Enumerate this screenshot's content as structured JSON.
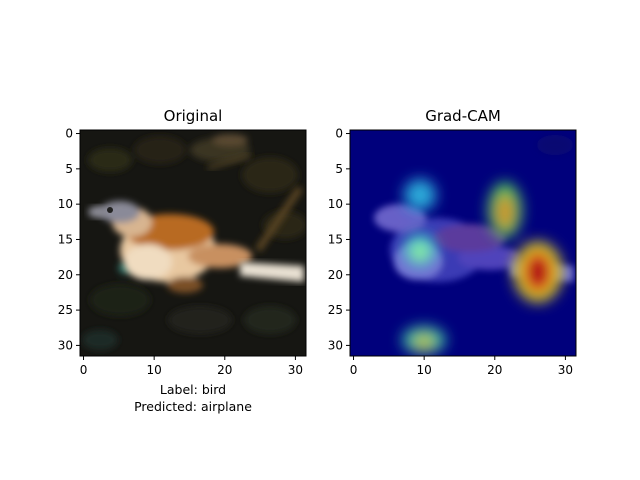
{
  "figure": {
    "panels": [
      {
        "title": "Original",
        "image": "cifar-10 bird photo: small brown and white bird perched on a branch, dark background",
        "xticks": [
          "0",
          "10",
          "20",
          "30"
        ],
        "yticks": [
          "0",
          "5",
          "10",
          "15",
          "20",
          "25",
          "30"
        ],
        "caption": [
          "Label: bird",
          "Predicted: airplane"
        ]
      },
      {
        "title": "Grad-CAM",
        "image": "jet-colormap Grad-CAM heatmap overlay on the bird photo",
        "xticks": [
          "0",
          "10",
          "20",
          "30"
        ],
        "yticks": [
          "0",
          "5",
          "10",
          "15",
          "20",
          "25",
          "30"
        ]
      }
    ],
    "grid_size": 32,
    "colormap": "jet",
    "heat_regions": [
      {
        "row": 9,
        "col": 9,
        "strength": 0.45
      },
      {
        "row": 17,
        "col": 9,
        "strength": 0.55
      },
      {
        "row": 12,
        "col": 21,
        "strength": 0.65
      },
      {
        "row": 20,
        "col": 26,
        "strength": 1.0
      },
      {
        "row": 30,
        "col": 10,
        "strength": 0.5
      }
    ]
  }
}
